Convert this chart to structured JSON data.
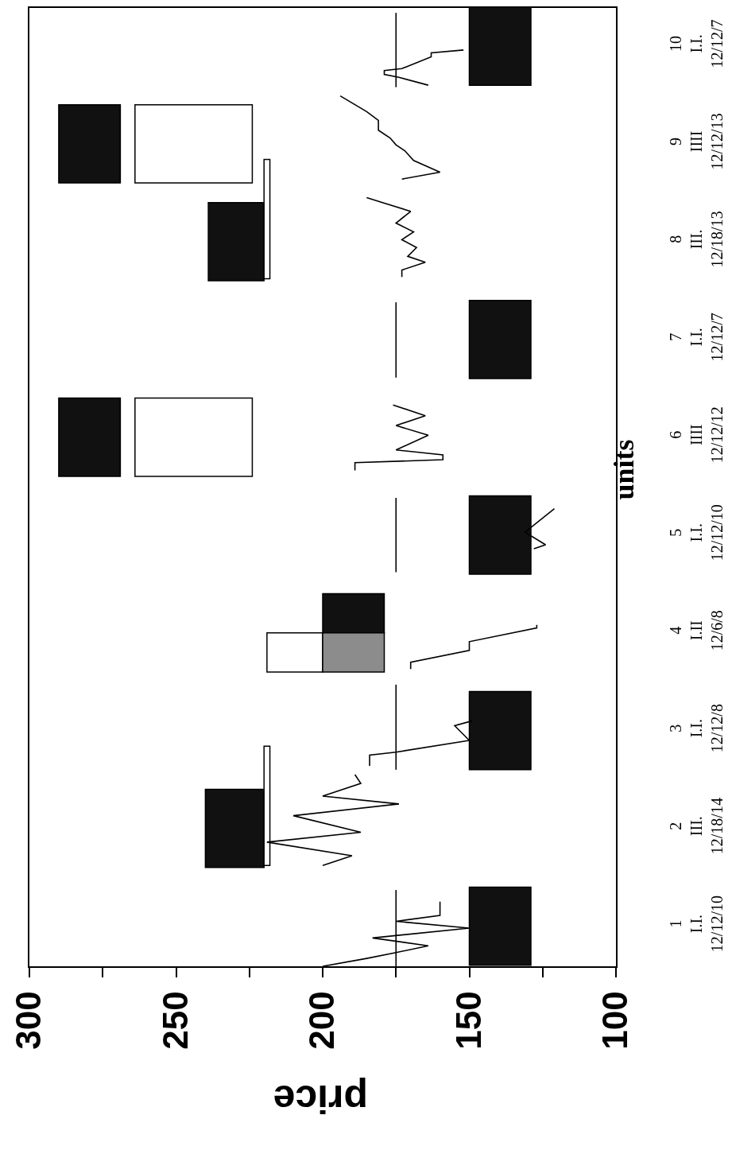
{
  "chart_data": {
    "type": "bar",
    "orientation": "horizontal",
    "xlabel": "price",
    "ylabel": "units",
    "xlim": [
      300,
      100
    ],
    "xticks": [
      300,
      {
        "value": 275,
        "label": null
      },
      250,
      {
        "value": 225,
        "label": null
      },
      200,
      {
        "value": 175,
        "label": null
      },
      150,
      {
        "value": 125,
        "label": null
      },
      100
    ],
    "ylim": [
      0.59,
      10.39
    ],
    "yticks": [
      1,
      2,
      3,
      4,
      5,
      6,
      7,
      8,
      9,
      10
    ],
    "annotations": [
      "I.I.\n12/12/10",
      "III.\n12/18/14",
      "I.I.\n12/12/8",
      "I.II\n12/6/8",
      "I.I.\n12/12/10",
      "IIII\n12/12/12",
      "I.I.\n12/12/7",
      "III.\n12/18/13",
      "IIII\n12/12/13",
      "I.I.\n12/12/7"
    ],
    "series": [
      {
        "color": "#111111",
        "x": [
          10,
          9,
          8,
          7,
          6,
          5,
          4.2,
          3,
          2,
          1
        ],
        "base": [
          129,
          269,
          220,
          129,
          269,
          129,
          179,
          129,
          220,
          129
        ],
        "values": [
          21,
          21,
          19,
          21,
          21,
          21,
          21,
          21,
          20,
          21
        ]
      },
      {
        "color": "#ffffff",
        "x": [
          9,
          8.23,
          6,
          3.8,
          2.23
        ],
        "base": [
          224,
          218,
          224,
          200,
          218
        ],
        "values": [
          40,
          2,
          40,
          19,
          2
        ]
      },
      {
        "color": "#8c8c8c",
        "x": [
          3.8
        ],
        "base": [
          179
        ],
        "values": [
          21
        ]
      },
      {
        "type": "line",
        "color": "#000000",
        "x": [
          0.59,
          1.37,
          2.0,
          2.6,
          3.47,
          4.0,
          4.62,
          5.38,
          6.0,
          6.61,
          7.38,
          8.5,
          9.58,
          10.34
        ],
        "values": [
          175,
          175,
          null,
          175,
          175,
          null,
          175,
          175,
          null,
          175,
          175,
          null,
          175,
          175
        ]
      },
      {
        "type": "line",
        "color": "#000000",
        "x": [
          0.59,
          0.67,
          0.73,
          0.8,
          0.88,
          0.98,
          1.05,
          1.11,
          1.25
        ],
        "values": [
          200,
          185,
          175,
          164,
          183,
          150,
          175,
          160,
          160
        ]
      },
      {
        "type": "line",
        "color": "#000000",
        "x": [
          1.62,
          1.72,
          1.86,
          1.96,
          2.13,
          2.25,
          2.33,
          2.46,
          2.55
        ],
        "values": [
          200,
          190,
          219,
          187,
          210,
          174,
          200,
          187,
          189
        ]
      },
      {
        "type": "line",
        "color": "#000000",
        "x": [
          2.64,
          2.75,
          2.78,
          2.9,
          3.05,
          3.1
        ],
        "values": [
          184,
          184,
          175,
          150,
          155,
          149
        ]
      },
      {
        "type": "line",
        "color": "#000000",
        "x": [
          3.63,
          3.7,
          3.82,
          3.91,
          4.05,
          4.08
        ],
        "values": [
          170,
          170,
          150,
          150,
          127,
          127
        ]
      },
      {
        "type": "line",
        "color": "#000000",
        "x": [
          4.86,
          4.9,
          5.03,
          5.27
        ],
        "values": [
          128,
          124,
          131,
          121
        ]
      },
      {
        "type": "line",
        "color": "#000000",
        "x": [
          5.66,
          5.74,
          5.77,
          5.82,
          5.87,
          6.02,
          6.12,
          6.22,
          6.33
        ],
        "values": [
          189,
          189,
          159,
          159,
          175,
          164,
          175,
          165,
          176
        ]
      },
      {
        "type": "line",
        "color": "#000000",
        "x": [
          7.64,
          7.71,
          7.79,
          7.85,
          7.94,
          8.02,
          8.1,
          8.19,
          8.31,
          8.45
        ],
        "values": [
          173,
          173,
          165,
          171,
          168,
          173,
          169,
          175,
          170,
          185
        ]
      },
      {
        "type": "line",
        "color": "#000000",
        "x": [
          8.64,
          8.71,
          8.83,
          8.93,
          8.99,
          9.06,
          9.14,
          9.24,
          9.33,
          9.49
        ],
        "values": [
          173,
          160,
          169,
          172,
          175,
          177,
          181,
          181,
          185,
          194
        ]
      },
      {
        "type": "line",
        "color": "#000000",
        "x": [
          9.6,
          9.68,
          9.71,
          9.75,
          9.77,
          9.89,
          9.93,
          9.96
        ],
        "values": [
          164,
          174,
          179,
          179,
          173,
          163,
          163,
          152
        ]
      }
    ]
  }
}
